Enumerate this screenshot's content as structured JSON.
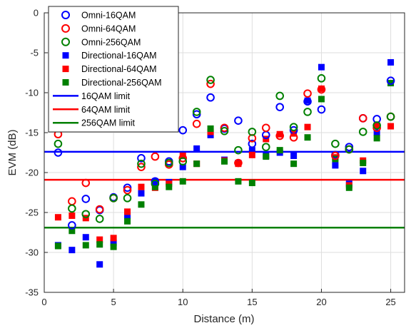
{
  "chart_data": {
    "type": "scatter",
    "xlabel": "Distance (m)",
    "ylabel": "EVM (dB)",
    "xlim": [
      0,
      26
    ],
    "ylim": [
      -35,
      0
    ],
    "xticks": [
      0,
      5,
      10,
      15,
      20,
      25
    ],
    "yticks": [
      0,
      -5,
      -10,
      -15,
      -20,
      -25,
      -30,
      -35
    ],
    "grid": true,
    "legend_position": "top-left",
    "series": [
      {
        "name": "Omni-16QAM",
        "marker": "circle",
        "color": "#0000ff",
        "x": [
          1,
          2,
          3,
          4,
          5,
          6,
          7,
          8,
          9,
          10,
          11,
          12,
          13,
          14,
          15,
          16,
          17,
          18,
          19,
          20,
          21,
          22,
          23,
          24,
          25
        ],
        "y": [
          -17.5,
          -26.6,
          -23.3,
          -24.7,
          -23.1,
          -21.9,
          -18.2,
          -21.1,
          -18.6,
          -14.7,
          -12.7,
          -10.6,
          -14.5,
          -13.5,
          -16.4,
          -15.3,
          -11.8,
          -14.7,
          -11.1,
          -12.1,
          -17.8,
          -16.8,
          -13.2,
          -13.3,
          -8.5
        ]
      },
      {
        "name": "Omni-64QAM",
        "marker": "circle",
        "color": "#ff0000",
        "x": [
          1,
          2,
          3,
          4,
          5,
          6,
          7,
          8,
          9,
          10,
          11,
          12,
          13,
          14,
          15,
          16,
          17,
          18,
          19,
          20,
          21,
          22,
          23,
          24,
          25
        ],
        "y": [
          -15.2,
          -23.6,
          -21.3,
          -24.6,
          -23.2,
          -22.2,
          -19.3,
          -18.0,
          -19.0,
          -18.2,
          -13.9,
          -8.9,
          -14.4,
          -18.8,
          -15.7,
          -14.4,
          -15.4,
          -15.6,
          -10.1,
          -9.6,
          -17.9,
          -17.1,
          -13.2,
          -14.4,
          -13.0
        ]
      },
      {
        "name": "Omni-256QAM",
        "marker": "circle",
        "color": "#008000",
        "x": [
          1,
          2,
          3,
          4,
          5,
          6,
          7,
          8,
          9,
          10,
          11,
          12,
          13,
          14,
          15,
          16,
          17,
          18,
          19,
          20,
          21,
          22,
          23,
          24,
          25
        ],
        "y": [
          -16.4,
          -24.5,
          -25.2,
          -25.8,
          -23.2,
          -23.2,
          -18.9,
          -21.4,
          -18.8,
          -18.6,
          -12.4,
          -8.4,
          -14.8,
          -17.2,
          -14.9,
          -16.8,
          -10.4,
          -14.3,
          -12.4,
          -8.2,
          -16.4,
          -17.1,
          -14.9,
          -14.1,
          -13.0
        ]
      },
      {
        "name": "Directional-16QAM",
        "marker": "square",
        "color": "#0000ff",
        "x": [
          1,
          2,
          3,
          4,
          5,
          6,
          7,
          8,
          9,
          10,
          11,
          12,
          13,
          14,
          15,
          16,
          17,
          18,
          19,
          20,
          21,
          22,
          23,
          24,
          25
        ],
        "y": [
          -29.1,
          -29.7,
          -28.1,
          -31.5,
          -28.8,
          -25.4,
          -22.6,
          -21.1,
          -21.2,
          -19.3,
          -17.0,
          -15.3,
          -18.4,
          -18.8,
          -17.2,
          -17.9,
          -17.5,
          -17.9,
          -11.0,
          -6.8,
          -19.1,
          -21.4,
          -19.8,
          -15.0,
          -6.2
        ]
      },
      {
        "name": "Directional-64QAM",
        "marker": "square",
        "color": "#ff0000",
        "x": [
          1,
          2,
          3,
          4,
          5,
          6,
          7,
          8,
          9,
          10,
          11,
          12,
          13,
          14,
          15,
          16,
          17,
          18,
          19,
          20,
          21,
          22,
          23,
          24,
          25
        ],
        "y": [
          -25.6,
          -25.4,
          -25.7,
          -28.4,
          -28.2,
          -24.9,
          -21.8,
          -21.9,
          -21.4,
          -17.9,
          -18.9,
          -14.9,
          -18.5,
          -18.9,
          -17.8,
          -15.8,
          -15.2,
          -15.1,
          -14.3,
          -9.5,
          -18.1,
          -21.6,
          -18.5,
          -14.1,
          -14.2
        ]
      },
      {
        "name": "Directional-256QAM",
        "marker": "square",
        "color": "#008000",
        "x": [
          1,
          2,
          3,
          4,
          5,
          6,
          7,
          8,
          9,
          10,
          11,
          12,
          13,
          14,
          15,
          16,
          17,
          18,
          19,
          20,
          21,
          22,
          23,
          24,
          25
        ],
        "y": [
          -29.2,
          -27.3,
          -29.1,
          -29.0,
          -29.3,
          -26.1,
          -24.0,
          -21.8,
          -21.8,
          -21.1,
          -18.9,
          -14.5,
          -18.6,
          -21.1,
          -21.3,
          -18.0,
          -17.2,
          -18.9,
          -15.6,
          -10.8,
          -18.3,
          -21.9,
          -18.8,
          -15.7,
          -8.8
        ]
      },
      {
        "name": "16QAM limit",
        "kind": "hline",
        "color": "#0000ff",
        "y": -17.4
      },
      {
        "name": "64QAM limit",
        "kind": "hline",
        "color": "#ff0000",
        "y": -20.9
      },
      {
        "name": "256QAM limit",
        "kind": "hline",
        "color": "#008000",
        "y": -26.9
      }
    ]
  }
}
